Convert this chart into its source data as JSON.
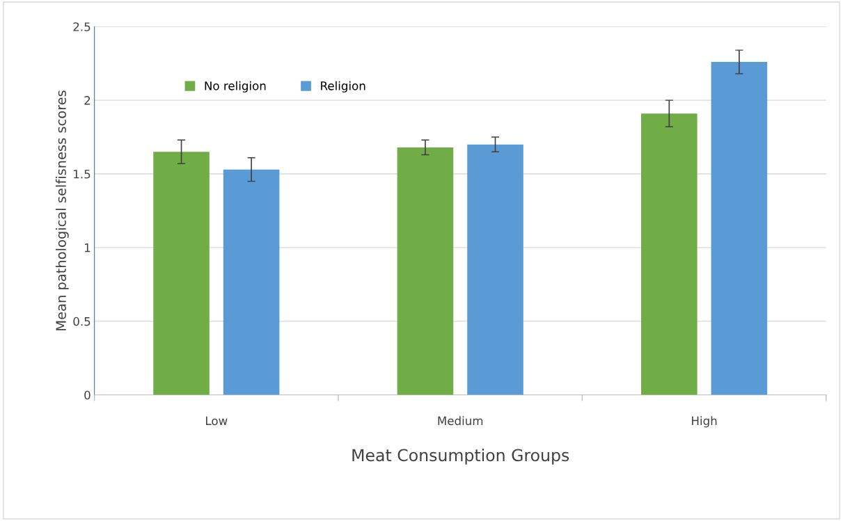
{
  "chart_data": {
    "type": "bar",
    "xlabel": "Meat Consumption Groups",
    "ylabel": "Mean pathological selfisness scores",
    "categories": [
      "Low",
      "Medium",
      "High"
    ],
    "series": [
      {
        "name": "No religion",
        "color": "#70ad47",
        "values": [
          1.65,
          1.68,
          1.91
        ],
        "errors": [
          0.08,
          0.05,
          0.09
        ]
      },
      {
        "name": "Religion",
        "color": "#5b9bd5",
        "values": [
          1.53,
          1.7,
          2.26
        ],
        "errors": [
          0.08,
          0.05,
          0.08
        ]
      }
    ],
    "ylim": [
      0,
      2.5
    ],
    "yticks": [
      0,
      0.5,
      1,
      1.5,
      2,
      2.5
    ],
    "grid": "y",
    "legend": "top left"
  }
}
